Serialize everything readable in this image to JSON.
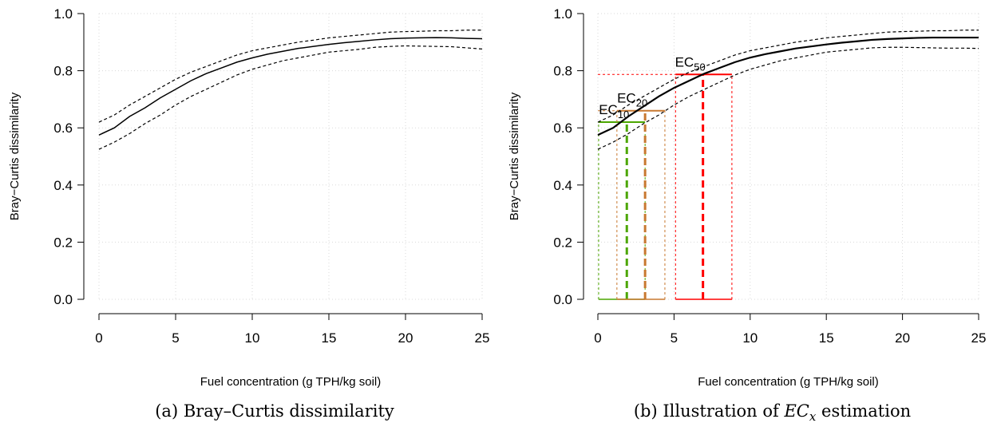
{
  "chart_data": [
    {
      "type": "line",
      "caption": {
        "text": "(a) Bray–Curtis dissimilarity"
      },
      "xlabel": "Fuel concentration (g TPH/kg soil)",
      "ylabel": "Bray−Curtis dissimilarity",
      "xlim": [
        0,
        25
      ],
      "ylim": [
        0,
        1
      ],
      "xticks": [
        0,
        5,
        10,
        15,
        20,
        25
      ],
      "yticks": [
        {
          "value": 0,
          "label": "0.0"
        },
        0.2,
        0.4,
        0.6,
        0.8,
        {
          "value": 1,
          "label": "1.0"
        }
      ],
      "grid": true,
      "x": [
        0,
        1,
        2,
        3,
        4,
        5,
        6,
        7,
        8,
        9,
        10,
        11,
        12,
        13,
        14,
        15,
        16,
        17,
        18,
        19,
        20,
        21,
        22,
        23,
        24,
        25
      ],
      "series": [
        {
          "color": "#000000",
          "style": "solid",
          "values": [
            0.575,
            0.6,
            0.64,
            0.67,
            0.705,
            0.735,
            0.765,
            0.79,
            0.81,
            0.83,
            0.845,
            0.858,
            0.868,
            0.878,
            0.885,
            0.892,
            0.898,
            0.903,
            0.908,
            0.912,
            0.914,
            0.915,
            0.916,
            0.915,
            0.913,
            0.912
          ]
        },
        {
          "color": "#000000",
          "style": "dashed",
          "values": [
            0.62,
            0.645,
            0.68,
            0.71,
            0.74,
            0.77,
            0.795,
            0.815,
            0.835,
            0.855,
            0.87,
            0.88,
            0.89,
            0.9,
            0.907,
            0.915,
            0.92,
            0.925,
            0.93,
            0.935,
            0.937,
            0.938,
            0.94,
            0.94,
            0.942,
            0.942
          ]
        },
        {
          "color": "#000000",
          "style": "dashed",
          "values": [
            0.525,
            0.55,
            0.58,
            0.615,
            0.645,
            0.68,
            0.71,
            0.735,
            0.76,
            0.785,
            0.805,
            0.82,
            0.835,
            0.845,
            0.855,
            0.865,
            0.87,
            0.875,
            0.882,
            0.885,
            0.887,
            0.886,
            0.885,
            0.884,
            0.88,
            0.876
          ]
        }
      ]
    },
    {
      "type": "line",
      "caption": {
        "text": "(b) Illustration of ",
        "math": "EC",
        "math_sub": "x",
        "after": " estimation"
      },
      "xlabel": "Fuel concentration (g TPH/kg soil)",
      "ylabel": "Bray−Curtis dissimilarity",
      "xlim": [
        0,
        25
      ],
      "ylim": [
        0,
        1
      ],
      "xticks": [
        0,
        5,
        10,
        15,
        20,
        25
      ],
      "yticks": [
        {
          "value": 0,
          "label": "0.0"
        },
        0.2,
        0.4,
        0.6,
        0.8,
        {
          "value": 1,
          "label": "1.0"
        }
      ],
      "grid": true,
      "x": [
        0,
        1,
        2,
        3,
        4,
        5,
        6,
        7,
        8,
        9,
        10,
        11,
        12,
        13,
        14,
        15,
        16,
        17,
        18,
        19,
        20,
        21,
        22,
        23,
        24,
        25
      ],
      "series": [
        {
          "color": "#000000",
          "style": "solid",
          "values": [
            0.575,
            0.6,
            0.64,
            0.675,
            0.71,
            0.74,
            0.765,
            0.79,
            0.81,
            0.83,
            0.846,
            0.858,
            0.868,
            0.878,
            0.885,
            0.892,
            0.898,
            0.903,
            0.908,
            0.911,
            0.913,
            0.915,
            0.916,
            0.916,
            0.916,
            0.916
          ]
        },
        {
          "color": "#000000",
          "style": "dashed",
          "values": [
            0.62,
            0.645,
            0.68,
            0.71,
            0.74,
            0.77,
            0.795,
            0.815,
            0.835,
            0.855,
            0.87,
            0.88,
            0.89,
            0.9,
            0.907,
            0.915,
            0.92,
            0.925,
            0.93,
            0.935,
            0.937,
            0.938,
            0.94,
            0.94,
            0.942,
            0.942
          ]
        },
        {
          "color": "#000000",
          "style": "dashed",
          "values": [
            0.525,
            0.55,
            0.58,
            0.615,
            0.645,
            0.68,
            0.71,
            0.735,
            0.76,
            0.785,
            0.805,
            0.82,
            0.835,
            0.845,
            0.855,
            0.865,
            0.87,
            0.875,
            0.88,
            0.882,
            0.882,
            0.881,
            0.88,
            0.879,
            0.879,
            0.878
          ]
        }
      ],
      "ec_estimates": [
        {
          "label": "EC",
          "sub": "10",
          "color": "#4ca600",
          "x": 1.9,
          "y": 0.62,
          "lower": 0.05,
          "upper": 3.1
        },
        {
          "label": "EC",
          "sub": "20",
          "color": "#c87830",
          "x": 3.1,
          "y": 0.66,
          "lower": 1.25,
          "upper": 4.4
        },
        {
          "label": "EC",
          "sub": "50",
          "color": "#ff0000",
          "x": 6.9,
          "y": 0.787,
          "lower": 5.1,
          "upper": 8.8
        }
      ]
    }
  ]
}
